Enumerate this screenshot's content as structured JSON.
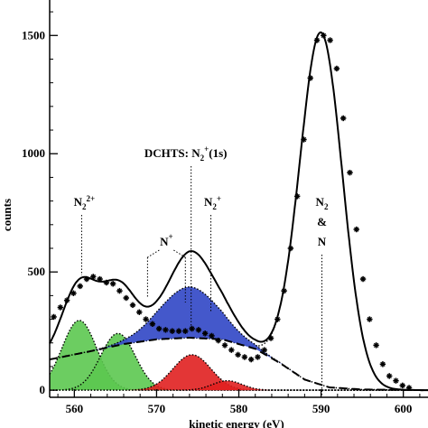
{
  "chart_data": {
    "type": "line",
    "xlabel": "kinetic energy (eV)",
    "ylabel": "counts",
    "xlim": [
      557,
      603
    ],
    "ylim": [
      -30,
      1650
    ],
    "xticks": [
      560,
      570,
      580,
      590,
      600
    ],
    "yticks": [
      0,
      500,
      1000,
      1500
    ],
    "data_points": {
      "x": [
        557.5,
        558.3,
        559.1,
        559.9,
        560.7,
        561.5,
        562.3,
        563.1,
        563.9,
        564.7,
        565.5,
        566.3,
        567.1,
        567.9,
        568.7,
        569.5,
        570.3,
        571.1,
        571.9,
        572.7,
        573.5,
        574.3,
        575.1,
        575.9,
        576.7,
        577.5,
        578.3,
        579.1,
        579.9,
        580.7,
        581.5,
        582.3,
        583.1,
        583.9,
        584.7,
        585.5,
        586.3,
        587.1,
        587.9,
        588.7,
        589.5,
        590.3,
        591.1,
        591.9,
        592.7,
        593.5,
        594.3,
        595.1,
        595.9,
        596.7,
        597.5,
        598.3,
        599.1,
        599.9,
        600.7
      ],
      "y": [
        310,
        350,
        380,
        410,
        440,
        470,
        480,
        470,
        455,
        450,
        420,
        390,
        360,
        330,
        300,
        280,
        260,
        255,
        250,
        250,
        250,
        260,
        255,
        240,
        230,
        210,
        190,
        170,
        150,
        140,
        130,
        140,
        170,
        220,
        300,
        420,
        600,
        820,
        1060,
        1320,
        1480,
        1500,
        1480,
        1360,
        1150,
        920,
        680,
        470,
        300,
        190,
        110,
        60,
        40,
        20,
        10
      ]
    },
    "series": [
      {
        "name": "total fit",
        "style": "solid-black",
        "components": "sum"
      },
      {
        "name": "background",
        "style": "dashed-black",
        "points": [
          [
            557,
            130
          ],
          [
            562,
            165
          ],
          [
            566,
            195
          ],
          [
            570,
            215
          ],
          [
            574,
            222
          ],
          [
            578,
            215
          ],
          [
            582,
            175
          ],
          [
            585,
            115
          ],
          [
            588,
            45
          ],
          [
            591,
            12
          ],
          [
            595,
            3
          ],
          [
            603,
            0
          ]
        ]
      },
      {
        "name": "N2",
        "color": "#ffffff",
        "peaks": [
          {
            "center": 590.0,
            "amplitude": 1490,
            "sigma": 2.6
          }
        ]
      },
      {
        "name": "N2 2+",
        "color": "#5cc850",
        "peaks": [
          {
            "center": 560.6,
            "amplitude": 295,
            "sigma": 2.1
          },
          {
            "center": 565.3,
            "amplitude": 240,
            "sigma": 2.1
          }
        ]
      },
      {
        "name": "DCHTS N2+(1s)",
        "color": "#3a4fc8",
        "peaks": [
          {
            "center": 574.0,
            "amplitude": 215,
            "sigma": 3.6
          }
        ]
      },
      {
        "name": "N+",
        "color": "#e02020",
        "peaks": [
          {
            "center": 574.3,
            "amplitude": 150,
            "sigma": 2.3
          },
          {
            "center": 578.6,
            "amplitude": 40,
            "sigma": 1.8
          }
        ]
      }
    ],
    "annotations": [
      {
        "id": "n2_2plus",
        "base": "N",
        "sub": "2",
        "sup": "2+",
        "x": 561.0
      },
      {
        "id": "n_plus",
        "base": "N",
        "sup": "+",
        "x_lines": [
          568.9,
          573.5
        ]
      },
      {
        "id": "dchts",
        "pre": "DCHTS: N",
        "sub": "2",
        "sup": "+",
        "post": "(1s)",
        "x": 574.2
      },
      {
        "id": "n2_plus",
        "base": "N",
        "sub": "2",
        "sup": "+",
        "x": 576.6
      },
      {
        "id": "n2_n",
        "lines": [
          "N",
          "2",
          "&",
          "N"
        ],
        "x": 590.1
      }
    ]
  }
}
